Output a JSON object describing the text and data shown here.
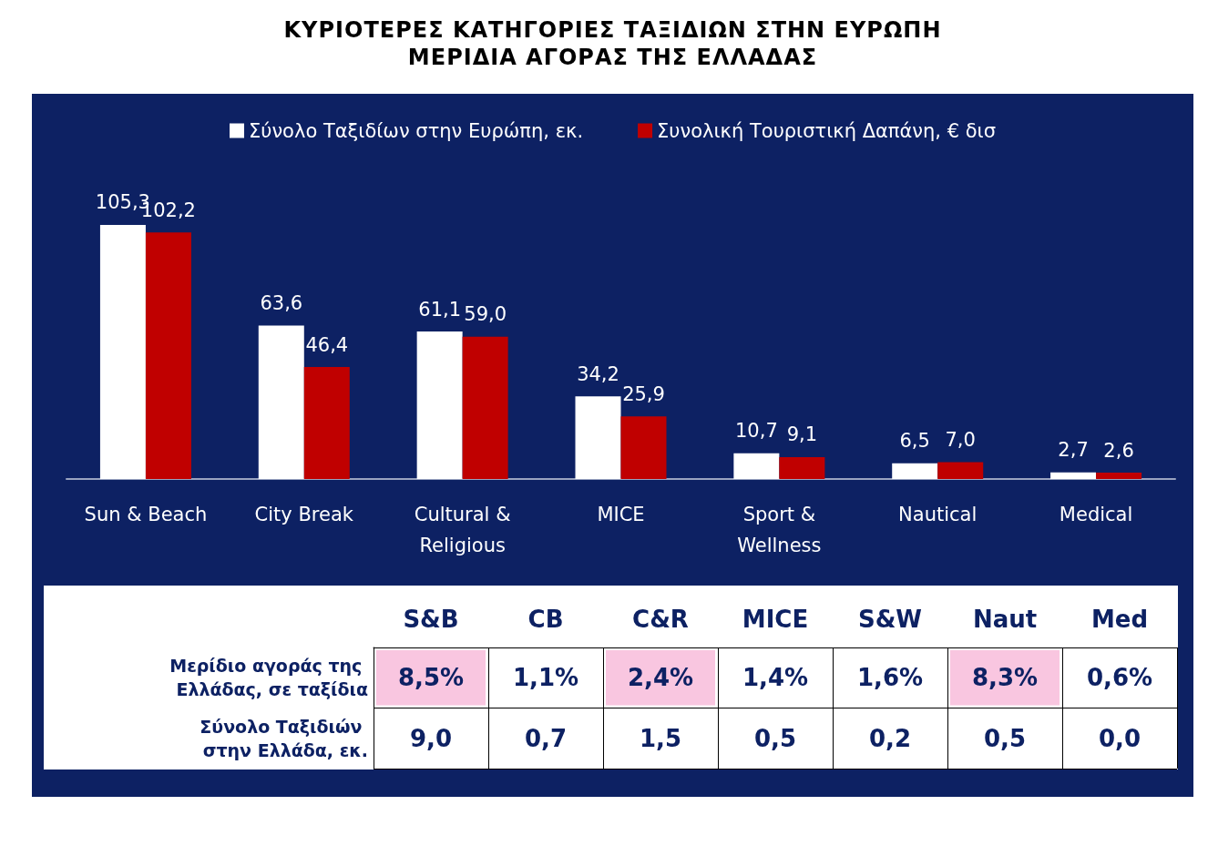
{
  "chart_data": [
    {
      "type": "bar",
      "title": "ΚΥΡΙΟΤΕΡΕΣ ΚΑΤΗΓΟΡΙΕΣ ΤΑΞΙΔΙΩΝ ΣΤΗΝ ΕΥΡΩΠΗ\nΜΕΡΙΔΙΑ ΑΓΟΡΑΣ ΤΗΣ ΕΛΛΑΔΑΣ",
      "categories": [
        "Sun & Beach",
        "City Break",
        "Cultural &\nReligious",
        "MICE",
        "Sport &\nWellness",
        "Nautical",
        "Medical"
      ],
      "series": [
        {
          "name": "Σύνολο Ταξιδίων στην Ευρώπη, εκ.",
          "color": "#ffffff",
          "values": [
            105.3,
            63.6,
            61.1,
            34.2,
            10.7,
            6.5,
            2.7
          ],
          "value_labels": [
            "105,3",
            "63,6",
            "61,1",
            "34,2",
            "10,7",
            "6,5",
            "2,7"
          ]
        },
        {
          "name": "Συνολική Τουριστική Δαπάνη, € δισ",
          "color": "#c00000",
          "values": [
            102.2,
            46.4,
            59.0,
            25.9,
            9.1,
            7.0,
            2.6
          ],
          "value_labels": [
            "102,2",
            "46,4",
            "59,0",
            "25,9",
            "9,1",
            "7,0",
            "2,6"
          ]
        }
      ],
      "legend": "top"
    },
    {
      "type": "heatmap",
      "categories": [
        "S&B",
        "CB",
        "C&R",
        "MICE",
        "S&W",
        "Naut",
        "Med"
      ],
      "y_categories": [
        "Μερίδιο αγοράς της Ελλάδας, σε ταξίδια",
        "Σύνολο Ταξιδιών στην Ελλάδα, εκ."
      ],
      "cells": [
        [
          "8,5%",
          "1,1%",
          "2,4%",
          "1,4%",
          "1,6%",
          "8,3%",
          "0,6%"
        ],
        [
          "9,0",
          "0,7",
          "1,5",
          "0,5",
          "0,2",
          "0,5",
          "0,0"
        ]
      ],
      "colors": [
        [
          "#f9c6e0",
          "#ffffff",
          "#f9c6e0",
          "#ffffff",
          "#ffffff",
          "#f9c6e0",
          "#ffffff"
        ],
        [
          "#ffffff",
          "#ffffff",
          "#ffffff",
          "#ffffff",
          "#ffffff",
          "#ffffff",
          "#ffffff"
        ]
      ]
    }
  ]
}
